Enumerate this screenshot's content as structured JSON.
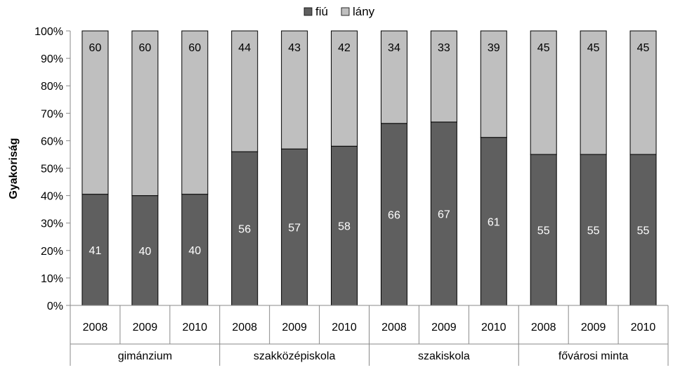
{
  "chart_data": {
    "type": "bar",
    "stacked": "percent",
    "ylabel": "Gyakoriság",
    "ylim": [
      0,
      100
    ],
    "yticks": [
      "0%",
      "10%",
      "20%",
      "30%",
      "40%",
      "50%",
      "60%",
      "70%",
      "80%",
      "90%",
      "100%"
    ],
    "grid": false,
    "legend_position": "top",
    "groups": [
      {
        "name": "gimánzium",
        "categories": [
          "2008",
          "2009",
          "2010"
        ]
      },
      {
        "name": "szakközépiskola",
        "categories": [
          "2008",
          "2009",
          "2010"
        ]
      },
      {
        "name": "szakiskola",
        "categories": [
          "2008",
          "2009",
          "2010"
        ]
      },
      {
        "name": "fővárosi minta",
        "categories": [
          "2008",
          "2009",
          "2010"
        ]
      }
    ],
    "series": [
      {
        "name": "fiú",
        "color": "#5f5f5f",
        "label_color": "#ffffff",
        "values": [
          40.5,
          40,
          40.5,
          56,
          57,
          58,
          66.3,
          66.8,
          61.2,
          55,
          55,
          55
        ],
        "labels": [
          "41",
          "40",
          "40",
          "56",
          "57",
          "58",
          "66",
          "67",
          "61",
          "55",
          "55",
          "55"
        ]
      },
      {
        "name": "lány",
        "color": "#bfbfbf",
        "label_color": "#000000",
        "values": [
          59.5,
          60,
          59.5,
          44,
          43,
          42,
          33.7,
          33.2,
          38.8,
          45,
          45,
          45
        ],
        "labels": [
          "60",
          "60",
          "60",
          "44",
          "43",
          "42",
          "34",
          "33",
          "39",
          "45",
          "45",
          "45"
        ]
      }
    ]
  }
}
